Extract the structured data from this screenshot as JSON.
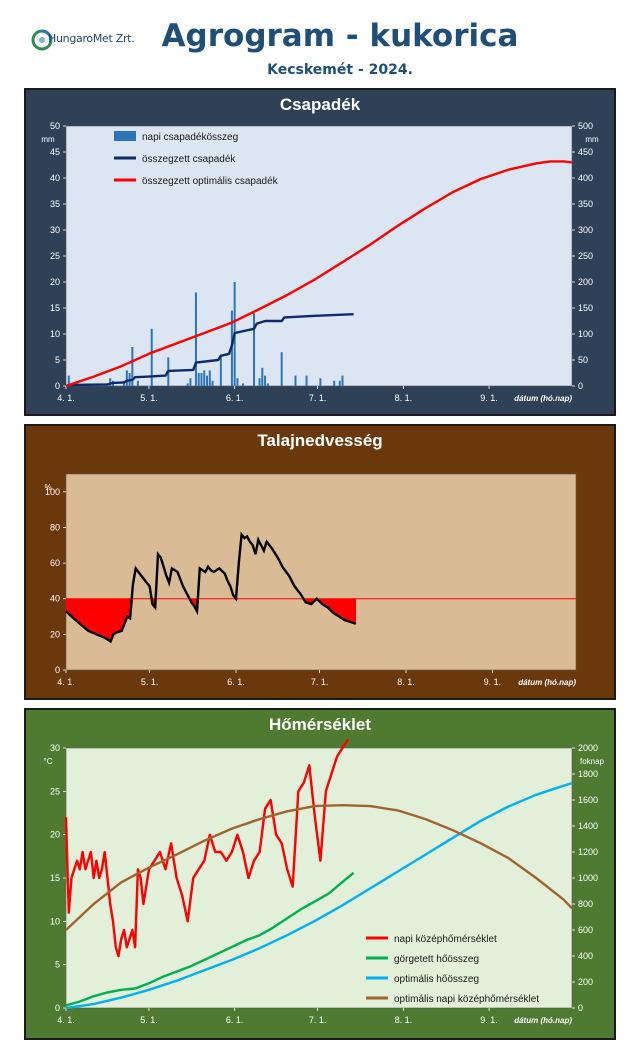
{
  "header": {
    "logo_text": "HungaroMet Zrt.",
    "title": "Agrogram - kukorica",
    "subtitle": "Kecskemét - 2024."
  },
  "chart_data": [
    {
      "type": "bar+line",
      "title": "Csapadék",
      "ylabel": "mm",
      "ylabel_right": "mm",
      "xlabel": "dátum (hó.nap)",
      "ylim": [
        0,
        50
      ],
      "ylim_right": [
        0,
        500
      ],
      "yticks": [
        0,
        5,
        10,
        15,
        20,
        25,
        30,
        35,
        40,
        45,
        50
      ],
      "yticks_right": [
        0,
        50,
        100,
        150,
        200,
        250,
        300,
        350,
        400,
        450,
        500
      ],
      "xlim": [
        0,
        183
      ],
      "xticks": [
        {
          "d": 0,
          "label": "4. 1."
        },
        {
          "d": 30,
          "label": "5. 1."
        },
        {
          "d": 61,
          "label": "6. 1."
        },
        {
          "d": 91,
          "label": "7. 1."
        },
        {
          "d": 122,
          "label": "8. 1."
        },
        {
          "d": 153,
          "label": "9. 1."
        }
      ],
      "background": "#dce6f2",
      "frame": "#2e4157",
      "series": [
        {
          "name": "napi csapadékösszeg",
          "kind": "bar",
          "axis": "left",
          "color": "#2e75b6",
          "x": [
            1,
            16,
            17,
            21,
            22,
            23,
            24,
            26,
            31,
            37,
            44,
            45,
            47,
            48,
            49,
            50,
            51,
            52,
            53,
            56,
            60,
            61,
            62,
            64,
            68,
            70,
            71,
            72,
            73,
            78,
            83,
            87,
            92,
            97,
            99,
            100
          ],
          "values": [
            2,
            1.5,
            1,
            1,
            3,
            2.5,
            7.5,
            1,
            11,
            5.5,
            0.5,
            1.5,
            18,
            2.5,
            2.5,
            3,
            2,
            3,
            1,
            6,
            14.5,
            20,
            1.5,
            0.5,
            14,
            1.5,
            3.5,
            2,
            0.5,
            6.5,
            2,
            2,
            1.5,
            1,
            1,
            2
          ]
        },
        {
          "name": "összegzett csapadék",
          "kind": "line",
          "axis": "right",
          "color": "#0d2b6b",
          "x": [
            0,
            1,
            15,
            17,
            21,
            22,
            24,
            25,
            30,
            36,
            37,
            46,
            47,
            55,
            56,
            59,
            60,
            61,
            68,
            69,
            72,
            78,
            79,
            90,
            104
          ],
          "values": [
            0,
            2,
            3,
            6,
            7,
            10,
            12,
            17,
            18,
            20,
            29,
            31,
            45,
            50,
            58,
            62,
            78,
            102,
            110,
            120,
            125,
            125,
            132,
            135,
            138
          ]
        },
        {
          "name": "összegzett optimális csapadék",
          "kind": "line",
          "axis": "right",
          "color": "#ff0000",
          "x": [
            0,
            10,
            20,
            30,
            40,
            50,
            60,
            70,
            80,
            90,
            100,
            110,
            120,
            130,
            140,
            150,
            160,
            170,
            175,
            180,
            183
          ],
          "values": [
            0,
            18,
            38,
            62,
            82,
            102,
            122,
            148,
            175,
            205,
            238,
            272,
            308,
            342,
            373,
            398,
            416,
            428,
            432,
            432,
            430
          ]
        }
      ]
    },
    {
      "type": "line",
      "title": "Talajnedvesség",
      "ylabel": "%",
      "xlabel": "dátum (hó.nap)",
      "ylim": [
        0,
        110
      ],
      "yticks": [
        0,
        20,
        40,
        60,
        80,
        100
      ],
      "xlim": [
        0,
        183
      ],
      "xticks": [
        {
          "d": 0,
          "label": "4. 1."
        },
        {
          "d": 30,
          "label": "5. 1."
        },
        {
          "d": 61,
          "label": "6. 1."
        },
        {
          "d": 91,
          "label": "7. 1."
        },
        {
          "d": 122,
          "label": "8. 1."
        },
        {
          "d": 153,
          "label": "9. 1."
        }
      ],
      "background": "#d9bb95",
      "frame": "#6b380b",
      "threshold": 40,
      "threshold_color": "#ff0000",
      "series": [
        {
          "name": "talajnedvesség",
          "color": "#000000",
          "x": [
            0,
            2,
            5,
            8,
            11,
            14,
            16,
            17,
            18,
            20,
            22,
            23,
            24,
            25,
            27,
            30,
            31,
            32,
            33,
            34,
            36,
            37,
            38,
            40,
            42,
            44,
            45,
            46,
            47,
            48,
            50,
            51,
            52,
            53,
            55,
            57,
            58,
            59,
            60,
            61,
            62,
            63,
            64,
            65,
            66,
            67,
            68,
            69,
            70,
            71,
            72,
            74,
            76,
            78,
            80,
            82,
            84,
            86,
            88,
            90,
            92,
            94,
            96,
            98,
            100,
            102,
            104
          ],
          "values": [
            33,
            30,
            26,
            22,
            20,
            18,
            16,
            20,
            21,
            22,
            30,
            29,
            48,
            57,
            53,
            47,
            37,
            35,
            65,
            63,
            53,
            49,
            57,
            55,
            47,
            41,
            38,
            36,
            33,
            57,
            55,
            58,
            56,
            55,
            57,
            54,
            50,
            47,
            42,
            40,
            60,
            76,
            74,
            75,
            72,
            70,
            65,
            73,
            70,
            67,
            72,
            68,
            63,
            57,
            53,
            47,
            43,
            38,
            37,
            40,
            37,
            35,
            32,
            30,
            28,
            27,
            26
          ]
        }
      ]
    },
    {
      "type": "line",
      "title": "Hőmérséklet",
      "ylabel": "°C",
      "ylabel_right": "foknap",
      "xlabel": "dátum (hó.nap)",
      "ylim": [
        0,
        30
      ],
      "ylim_right": [
        0,
        2000
      ],
      "yticks": [
        0,
        5,
        10,
        15,
        20,
        25,
        30
      ],
      "yticks_right": [
        0,
        200,
        400,
        600,
        800,
        1000,
        1200,
        1400,
        1600,
        1800,
        2000
      ],
      "xlim": [
        0,
        183
      ],
      "xticks": [
        {
          "d": 0,
          "label": "4. 1."
        },
        {
          "d": 30,
          "label": "5. 1."
        },
        {
          "d": 61,
          "label": "6. 1."
        },
        {
          "d": 91,
          "label": "7. 1."
        },
        {
          "d": 122,
          "label": "8. 1."
        },
        {
          "d": 153,
          "label": "9. 1."
        }
      ],
      "background": "#e2efd9",
      "frame": "#4e7b31",
      "series": [
        {
          "name": "napi középhőmérséklet",
          "axis": "left",
          "color": "#ff0000",
          "x": [
            0,
            1,
            2,
            3,
            4,
            5,
            6,
            7,
            8,
            9,
            10,
            11,
            12,
            13,
            14,
            15,
            16,
            17,
            18,
            19,
            20,
            21,
            22,
            23,
            24,
            25,
            26,
            27,
            28,
            30,
            32,
            34,
            36,
            38,
            40,
            42,
            44,
            46,
            48,
            50,
            52,
            54,
            56,
            58,
            60,
            62,
            64,
            66,
            68,
            70,
            72,
            74,
            76,
            78,
            80,
            82,
            84,
            86,
            88,
            90,
            92,
            94,
            96,
            98,
            100,
            102
          ],
          "values": [
            22,
            11,
            15,
            16,
            17,
            16,
            18,
            16,
            17,
            18,
            15,
            17,
            15,
            16,
            18,
            15,
            12,
            10,
            7,
            6,
            8,
            9,
            7,
            8,
            9,
            7,
            16,
            15,
            12,
            16,
            17,
            18,
            16,
            19,
            15,
            13,
            10,
            15,
            16,
            17,
            20,
            18,
            18,
            17,
            18,
            20,
            18,
            15,
            17,
            18,
            23,
            24,
            20,
            19,
            16,
            14,
            25,
            26,
            28,
            22,
            17,
            25,
            27,
            29,
            30,
            31
          ]
        },
        {
          "name": "görgetett hőösszeg",
          "axis": "right",
          "color": "#00b050",
          "x": [
            0,
            5,
            10,
            15,
            20,
            25,
            30,
            35,
            40,
            45,
            50,
            55,
            60,
            65,
            70,
            75,
            80,
            85,
            90,
            95,
            100,
            104
          ],
          "values": [
            20,
            50,
            90,
            120,
            140,
            150,
            190,
            240,
            280,
            320,
            370,
            420,
            470,
            520,
            560,
            620,
            690,
            760,
            820,
            880,
            970,
            1040
          ]
        },
        {
          "name": "optimális hőösszeg",
          "axis": "right",
          "color": "#00b0f0",
          "x": [
            0,
            10,
            20,
            30,
            40,
            50,
            60,
            70,
            80,
            90,
            100,
            110,
            120,
            130,
            140,
            150,
            160,
            170,
            180,
            183
          ],
          "values": [
            0,
            30,
            80,
            140,
            210,
            290,
            370,
            460,
            560,
            670,
            790,
            920,
            1050,
            1180,
            1310,
            1440,
            1550,
            1640,
            1710,
            1730
          ]
        },
        {
          "name": "optimális napi középhőmérséklet",
          "axis": "left",
          "color": "#a0642c",
          "x": [
            0,
            10,
            20,
            30,
            40,
            50,
            60,
            70,
            80,
            90,
            100,
            110,
            120,
            130,
            140,
            150,
            160,
            170,
            180,
            183
          ],
          "values": [
            9,
            12,
            14.5,
            16.2,
            17.7,
            19.3,
            20.7,
            21.8,
            22.7,
            23.3,
            23.4,
            23.3,
            22.8,
            21.8,
            20.5,
            19,
            17.3,
            15,
            12.5,
            11.5
          ]
        }
      ]
    }
  ]
}
